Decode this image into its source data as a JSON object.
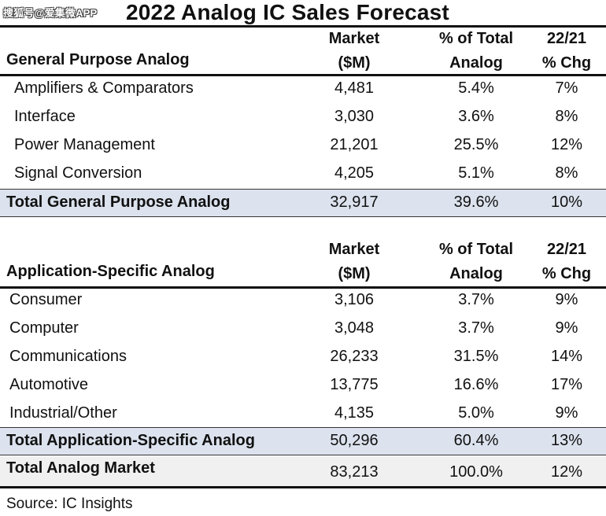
{
  "watermark": "搜狐号@爱集微APP",
  "title": "2022 Analog IC Sales Forecast",
  "columns": {
    "market": [
      "Market",
      "($M)"
    ],
    "share": [
      "% of Total",
      "Analog"
    ],
    "change": [
      "22/21",
      "% Chg"
    ]
  },
  "general": {
    "heading": "General Purpose Analog",
    "rows": [
      {
        "label": "Amplifiers & Comparators",
        "market": "4,481",
        "share": "5.4%",
        "change": "7%"
      },
      {
        "label": "Interface",
        "market": "3,030",
        "share": "3.6%",
        "change": "8%"
      },
      {
        "label": "Power Management",
        "market": "21,201",
        "share": "25.5%",
        "change": "12%"
      },
      {
        "label": "Signal Conversion",
        "market": "4,205",
        "share": "5.1%",
        "change": "8%"
      }
    ],
    "total": {
      "label": "Total General Purpose Analog",
      "market": "32,917",
      "share": "39.6%",
      "change": "10%"
    }
  },
  "specific": {
    "heading": "Application-Specific Analog",
    "rows": [
      {
        "label": "Consumer",
        "market": "3,106",
        "share": "3.7%",
        "change": "9%"
      },
      {
        "label": "Computer",
        "market": "3,048",
        "share": "3.7%",
        "change": "9%"
      },
      {
        "label": "Communications",
        "market": "26,233",
        "share": "31.5%",
        "change": "14%"
      },
      {
        "label": "Automotive",
        "market": "13,775",
        "share": "16.6%",
        "change": "17%"
      },
      {
        "label": "Industrial/Other",
        "market": "4,135",
        "share": "5.0%",
        "change": "9%"
      }
    ],
    "total": {
      "label": "Total Application-Specific Analog",
      "market": "50,296",
      "share": "60.4%",
      "change": "13%"
    }
  },
  "grand_total": {
    "label": "Total Analog Market",
    "market": "83,213",
    "share": "100.0%",
    "change": "12%"
  },
  "source": "Source:  IC Insights"
}
